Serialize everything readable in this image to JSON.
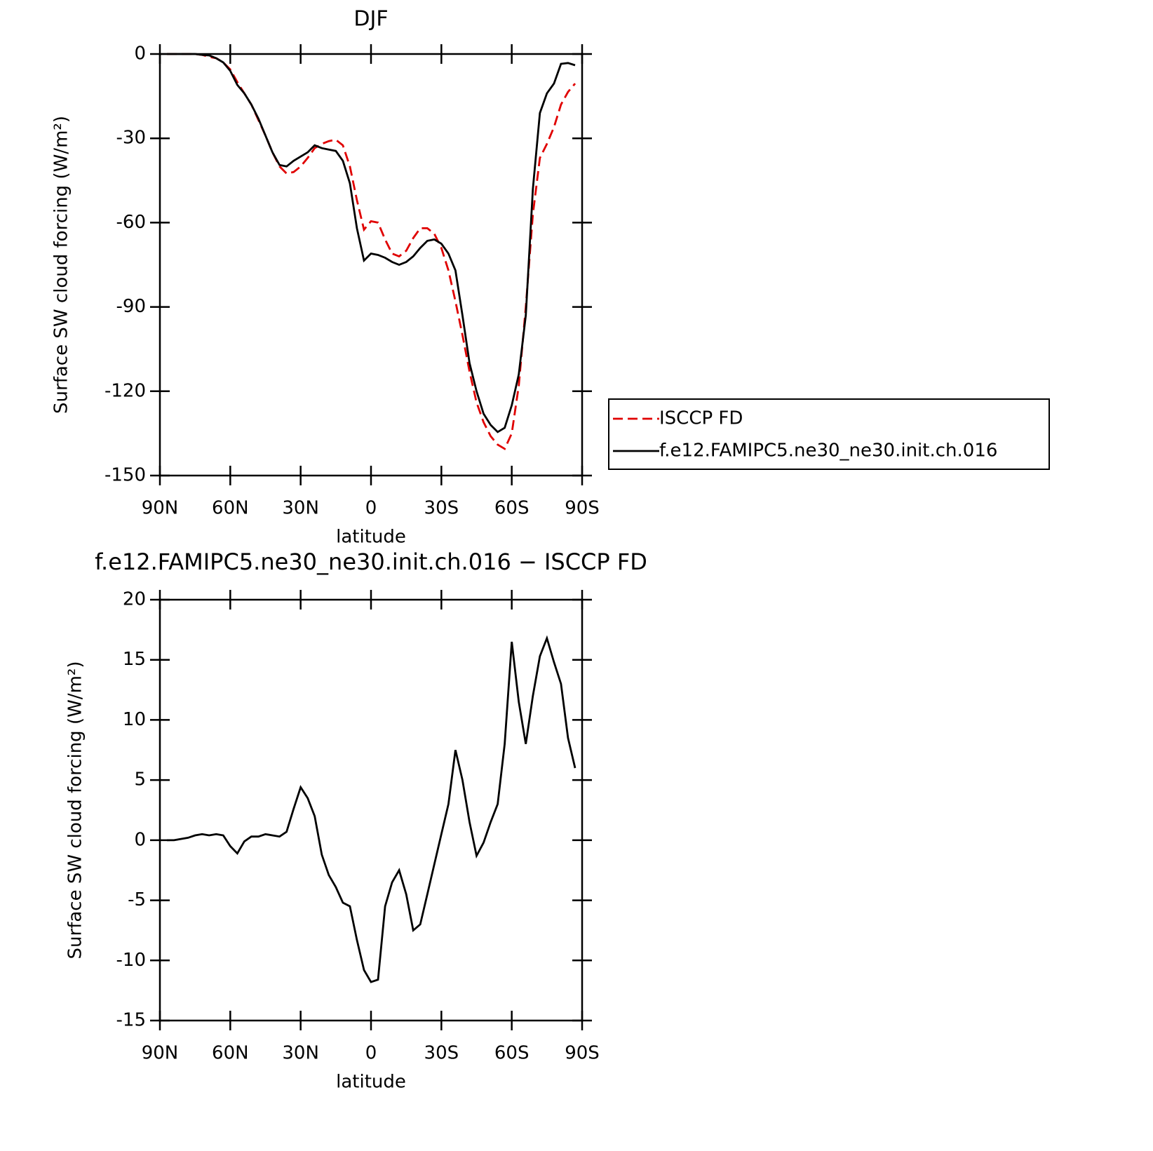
{
  "chart_data": [
    {
      "type": "line",
      "title": "DJF",
      "xlabel": "latitude",
      "ylabel": "Surface SW cloud forcing (W/m²)",
      "x": [
        87,
        84,
        81,
        78,
        75,
        72,
        69,
        66,
        63,
        60,
        57,
        54,
        51,
        48,
        45,
        42,
        39,
        36,
        33,
        30,
        27,
        24,
        21,
        18,
        15,
        12,
        9,
        6,
        3,
        0,
        -3,
        -6,
        -9,
        -12,
        -15,
        -18,
        -21,
        -24,
        -27,
        -30,
        -33,
        -36,
        -39,
        -42,
        -45,
        -48,
        -51,
        -54,
        -57,
        -60,
        -63,
        -66,
        -69,
        -72,
        -75,
        -78,
        -81,
        -84,
        -87
      ],
      "xlim": [
        90,
        -90
      ],
      "xticks": [
        {
          "value": 90,
          "label": "90N"
        },
        {
          "value": 60,
          "label": "60N"
        },
        {
          "value": 30,
          "label": "30N"
        },
        0,
        {
          "value": -30,
          "label": "30S"
        },
        {
          "value": -60,
          "label": "60S"
        },
        {
          "value": -90,
          "label": "90S"
        }
      ],
      "ylim": [
        -150,
        0
      ],
      "yticks": [
        -150,
        -120,
        -90,
        -60,
        -30,
        0
      ],
      "legend": "right",
      "series": [
        {
          "name": "ISCCP FD",
          "color": "#e00000",
          "style": "dashed",
          "values": [
            0,
            0,
            0,
            0,
            0,
            -0.3,
            -1,
            -1.5,
            -3,
            -5.5,
            -10,
            -14,
            -18,
            -23.5,
            -29,
            -35,
            -40,
            -42.5,
            -42,
            -40,
            -37,
            -33.5,
            -32,
            -31,
            -30.5,
            -32.5,
            -40,
            -52,
            -62.5,
            -59.5,
            -60,
            -66,
            -71,
            -72,
            -70,
            -65.5,
            -62,
            -62,
            -64,
            -69,
            -77,
            -88,
            -100,
            -113,
            -124,
            -131,
            -136,
            -139,
            -140.5,
            -135,
            -118,
            -90,
            -57,
            -37,
            -32,
            -26,
            -18,
            -13.5,
            -10.5
          ]
        },
        {
          "name": "f.e12.FAMIPC5.ne30_ne30.init.ch.016",
          "color": "#000000",
          "style": "solid",
          "values": [
            0,
            0,
            0,
            0,
            0,
            -0.3,
            -0.5,
            -1.5,
            -3,
            -6,
            -11,
            -14,
            -18,
            -23,
            -29,
            -35,
            -39.5,
            -40,
            -38,
            -36.5,
            -35,
            -32.5,
            -33.5,
            -34,
            -34.5,
            -38,
            -46,
            -62,
            -73.5,
            -71,
            -71.5,
            -72.5,
            -74,
            -75,
            -74,
            -72,
            -69,
            -66.5,
            -66,
            -67.5,
            -71,
            -77,
            -93,
            -110,
            -120,
            -128,
            -132,
            -134.5,
            -133,
            -125,
            -114,
            -93,
            -48,
            -21,
            -14,
            -10.5,
            -3.5,
            -3.2,
            -4
          ]
        }
      ]
    },
    {
      "type": "line",
      "title": "f.e12.FAMIPC5.ne30_ne30.init.ch.016 − ISCCP FD",
      "xlabel": "latitude",
      "ylabel": "Surface SW cloud forcing (W/m²)",
      "x": [
        87,
        84,
        81,
        78,
        75,
        72,
        69,
        66,
        63,
        60,
        57,
        54,
        51,
        48,
        45,
        42,
        39,
        36,
        33,
        30,
        27,
        24,
        21,
        18,
        15,
        12,
        9,
        6,
        3,
        0,
        -3,
        -6,
        -9,
        -12,
        -15,
        -18,
        -21,
        -24,
        -27,
        -30,
        -33,
        -36,
        -39,
        -42,
        -45,
        -48,
        -51,
        -54,
        -57,
        -60,
        -63,
        -66,
        -69,
        -72,
        -75,
        -78,
        -81,
        -84,
        -87
      ],
      "xlim": [
        90,
        -90
      ],
      "xticks": [
        {
          "value": 90,
          "label": "90N"
        },
        {
          "value": 60,
          "label": "60N"
        },
        {
          "value": 30,
          "label": "30N"
        },
        0,
        {
          "value": -30,
          "label": "30S"
        },
        {
          "value": -60,
          "label": "60S"
        },
        {
          "value": -90,
          "label": "90S"
        }
      ],
      "ylim": [
        -15,
        20
      ],
      "yticks": [
        -15,
        -10,
        -5,
        0,
        5,
        10,
        15,
        20
      ],
      "series": [
        {
          "color": "#000000",
          "style": "solid",
          "values": [
            0,
            0,
            0.1,
            0.2,
            0.4,
            0.5,
            0.4,
            0.5,
            0.4,
            -0.5,
            -1.1,
            -0.1,
            0.3,
            0.3,
            0.5,
            0.4,
            0.3,
            0.7,
            2.6,
            4.4,
            3.5,
            2.0,
            -1.2,
            -2.9,
            -3.9,
            -5.2,
            -5.5,
            -8.3,
            -10.8,
            -11.8,
            -11.6,
            -5.5,
            -3.5,
            -2.5,
            -4.5,
            -7.5,
            -7.0,
            -4.5,
            -2,
            0.5,
            3,
            7.5,
            5,
            1.5,
            -1.3,
            -0.2,
            1.5,
            3,
            8,
            16.5,
            11.5,
            8,
            12,
            15.3,
            16.8,
            14.8,
            13,
            8.5,
            6
          ]
        }
      ]
    }
  ]
}
